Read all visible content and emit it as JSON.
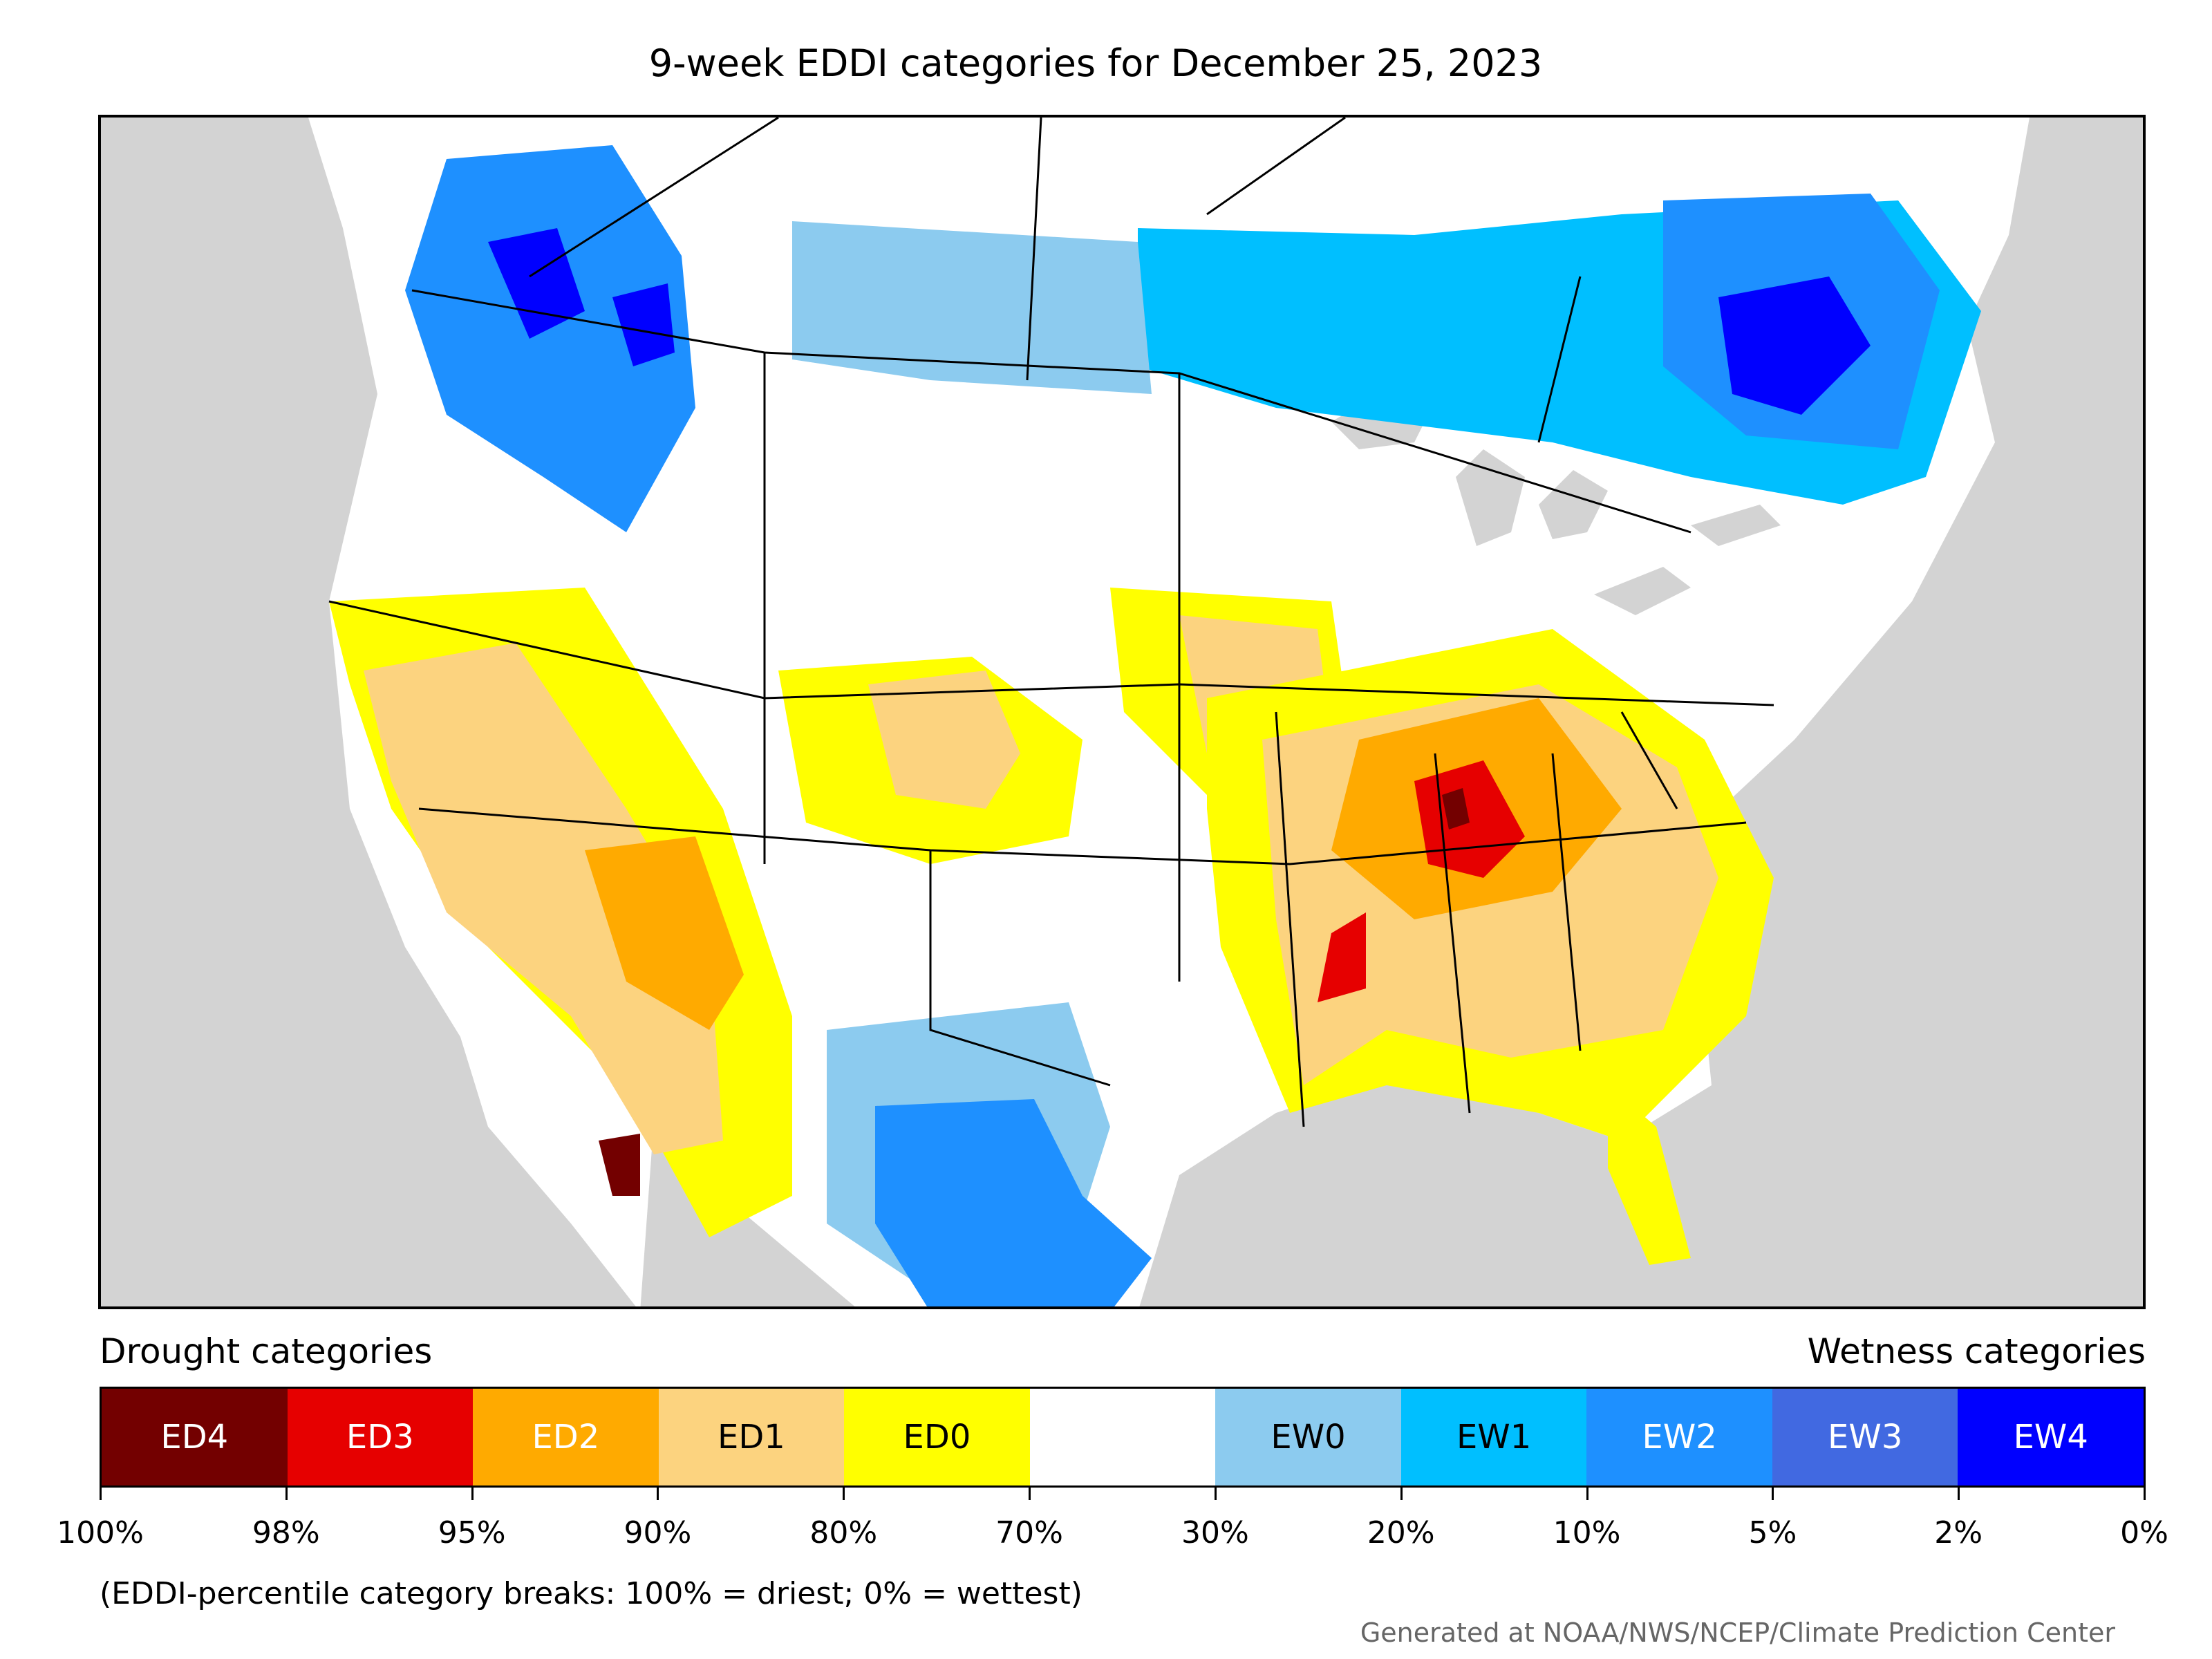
{
  "title": "9-week EDDI categories for December 25, 2023",
  "legend": {
    "drought_heading": "Drought categories",
    "wetness_heading": "Wetness categories",
    "categories": [
      {
        "label": "ED4",
        "color": "#730000",
        "text_color": "#ffffff"
      },
      {
        "label": "ED3",
        "color": "#e60000",
        "text_color": "#ffffff"
      },
      {
        "label": "ED2",
        "color": "#ffaa00",
        "text_color": "#ffffff"
      },
      {
        "label": "ED1",
        "color": "#fcd37f",
        "text_color": "#000000"
      },
      {
        "label": "ED0",
        "color": "#ffff00",
        "text_color": "#000000"
      },
      {
        "label": "",
        "color": "#ffffff",
        "text_color": "#000000"
      },
      {
        "label": "EW0",
        "color": "#8ccbef",
        "text_color": "#000000"
      },
      {
        "label": "EW1",
        "color": "#00bfff",
        "text_color": "#000000"
      },
      {
        "label": "EW2",
        "color": "#1e90ff",
        "text_color": "#ffffff"
      },
      {
        "label": "EW3",
        "color": "#4169e1",
        "text_color": "#ffffff"
      },
      {
        "label": "EW4",
        "color": "#0000ff",
        "text_color": "#ffffff"
      }
    ],
    "ticks": [
      "100%",
      "98%",
      "95%",
      "90%",
      "80%",
      "70%",
      "30%",
      "20%",
      "10%",
      "5%",
      "2%",
      "0%"
    ]
  },
  "note": "(EDDI-percentile category breaks: 100% = driest; 0% = wettest)",
  "credit": "Generated at NOAA/NWS/NCEP/Climate Prediction Center",
  "map_colors": {
    "background": "#d3d3d3",
    "land": "#ffffff",
    "borders": "#000000"
  }
}
